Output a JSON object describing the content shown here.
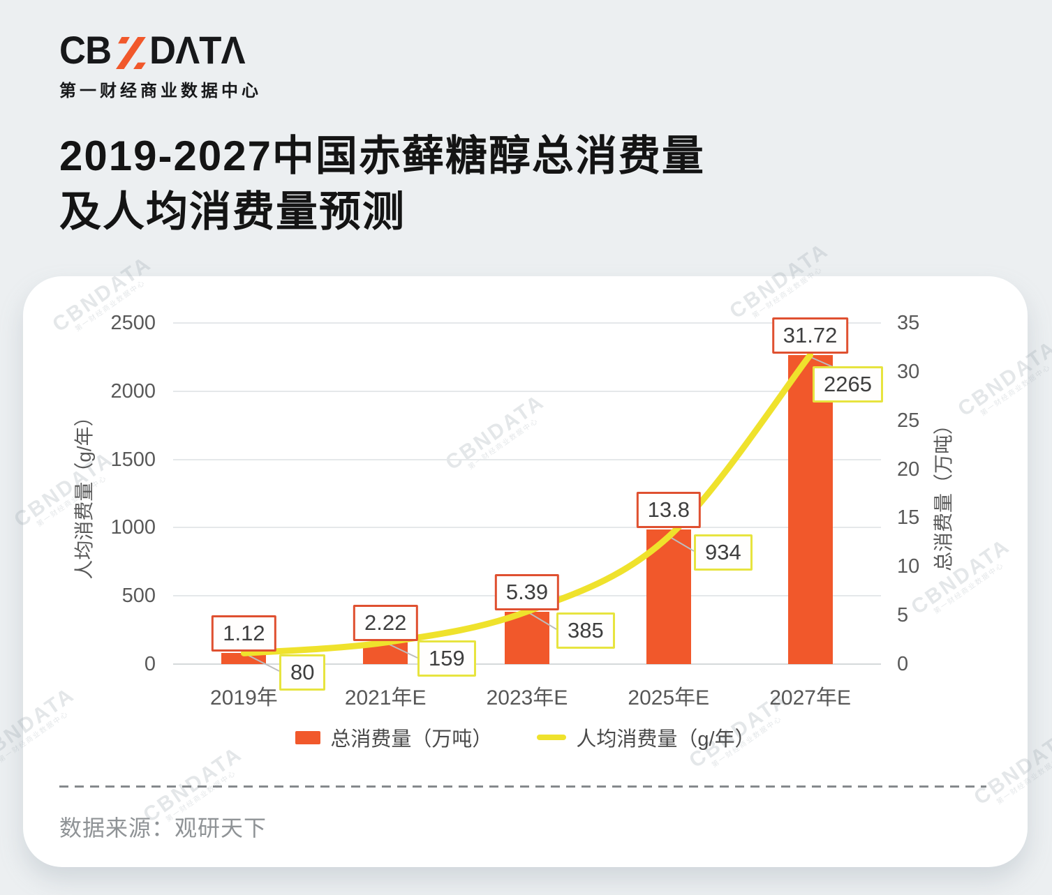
{
  "brand": {
    "logo_prefix": "CB",
    "logo_n": "N",
    "logo_suffix": "DΛTΛ",
    "subtitle": "第一财经商业数据中心",
    "accent_color": "#F1582B"
  },
  "title": {
    "line1": "2019-2027中国赤藓糖醇总消费量",
    "line2": "及人均消费量预测"
  },
  "chart_data": {
    "type": "bar+line",
    "categories": [
      "2019年",
      "2021年E",
      "2023年E",
      "2025年E",
      "2027年E"
    ],
    "series": [
      {
        "name": "总消费量（万吨）",
        "type": "bar",
        "axis": "right",
        "color": "#F1582B",
        "values": [
          1.12,
          2.22,
          5.39,
          13.8,
          31.72
        ]
      },
      {
        "name": "人均消费量（g/年）",
        "type": "line",
        "axis": "left",
        "color": "#EFE22C",
        "values": [
          80,
          159,
          385,
          934,
          2265
        ]
      }
    ],
    "left_axis": {
      "title": "人均消费量（g/年）",
      "min": 0,
      "max": 2500,
      "ticks": [
        0,
        500,
        1000,
        1500,
        2000,
        2500
      ]
    },
    "right_axis": {
      "title": "总消费量（万吨）",
      "min": 0,
      "max": 35,
      "ticks": [
        0,
        5,
        10,
        15,
        20,
        25,
        30,
        35
      ]
    },
    "grid": true,
    "legend_position": "bottom",
    "label_colors": {
      "bar_label_border": "#DF5030",
      "line_label_border": "#E7E43F"
    }
  },
  "source": {
    "label": "数据来源：观研天下"
  },
  "watermark": {
    "text": "CBNDATA",
    "subtext": "第一财经商业数据中心"
  }
}
